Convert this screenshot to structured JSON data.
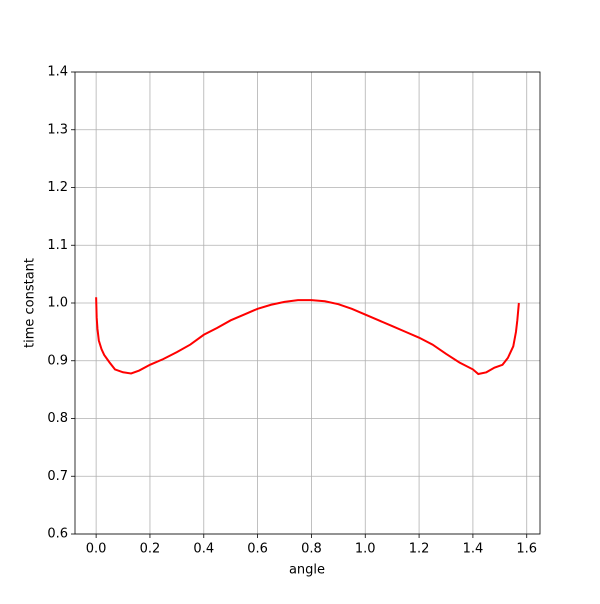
{
  "chart_data": {
    "type": "line",
    "x_label": "angle",
    "y_label": "time constant",
    "xlim": [
      -0.0785,
      1.6493
    ],
    "ylim": [
      0.6,
      1.4
    ],
    "xticks": [
      {
        "value": 0,
        "label": "0.0"
      },
      0.2,
      0.4,
      0.6,
      0.8,
      {
        "value": 1,
        "label": "1.0"
      },
      1.2,
      1.4,
      1.6
    ],
    "yticks": [
      0.6,
      0.7,
      0.8,
      0.9,
      {
        "value": 1,
        "label": "1.0"
      },
      1.1,
      1.2,
      1.3,
      1.4
    ],
    "grid": true,
    "series": [
      {
        "color": "#ff0000",
        "x": [
          0.0,
          0.002,
          0.005,
          0.01,
          0.02,
          0.03,
          0.05,
          0.07,
          0.1,
          0.13,
          0.16,
          0.2,
          0.25,
          0.3,
          0.35,
          0.4,
          0.45,
          0.5,
          0.55,
          0.6,
          0.65,
          0.7,
          0.75,
          0.8,
          0.85,
          0.9,
          0.95,
          1.0,
          1.05,
          1.1,
          1.15,
          1.2,
          1.25,
          1.3,
          1.35,
          1.4,
          1.42,
          1.45,
          1.48,
          1.51,
          1.53,
          1.55,
          1.56,
          1.565,
          1.5708
        ],
        "values": [
          1.01,
          0.975,
          0.955,
          0.935,
          0.92,
          0.91,
          0.897,
          0.885,
          0.88,
          0.878,
          0.883,
          0.893,
          0.903,
          0.915,
          0.928,
          0.945,
          0.957,
          0.97,
          0.98,
          0.99,
          0.997,
          1.002,
          1.005,
          1.005,
          1.003,
          0.998,
          0.99,
          0.98,
          0.97,
          0.96,
          0.95,
          0.94,
          0.928,
          0.912,
          0.897,
          0.885,
          0.877,
          0.88,
          0.888,
          0.893,
          0.905,
          0.925,
          0.95,
          0.97,
          1.0
        ]
      }
    ]
  }
}
